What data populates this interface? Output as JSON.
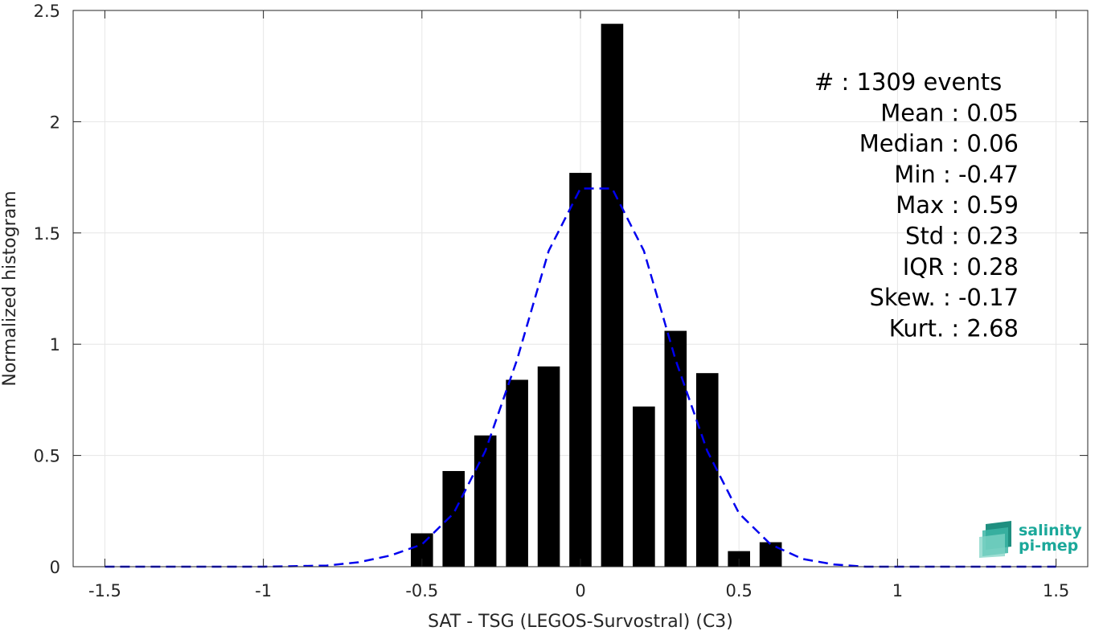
{
  "chart_data": {
    "type": "bar",
    "xlabel": "SAT - TSG (LEGOS-Survostral) (C3)",
    "ylabel": "Normalized histogram",
    "xlim": [
      -1.6,
      1.6
    ],
    "ylim": [
      0,
      2.5
    ],
    "xticks": [
      -1.5,
      -1,
      -0.5,
      0,
      0.5,
      1,
      1.5
    ],
    "xtick_labels": [
      "-1.5",
      "-1",
      "-0.5",
      "0",
      "0.5",
      "1",
      "1.5"
    ],
    "yticks": [
      0,
      0.5,
      1,
      1.5,
      2,
      2.5
    ],
    "ytick_labels": [
      "0",
      "0.5",
      "1",
      "1.5",
      "2",
      "2.5"
    ],
    "grid": true,
    "bar_color": "#000000",
    "bars": {
      "x": [
        -0.5,
        -0.4,
        -0.3,
        -0.2,
        -0.1,
        0.0,
        0.1,
        0.2,
        0.3,
        0.4,
        0.5,
        0.6
      ],
      "values": [
        0.15,
        0.43,
        0.59,
        0.84,
        0.9,
        1.77,
        2.44,
        0.72,
        1.06,
        0.87,
        0.07,
        0.11
      ]
    },
    "fit_curve": {
      "style": "dashed",
      "color": "#0000ee",
      "x": [
        -1.5,
        -1.0,
        -0.8,
        -0.7,
        -0.6,
        -0.5,
        -0.4,
        -0.3,
        -0.2,
        -0.1,
        0.0,
        0.1,
        0.2,
        0.3,
        0.4,
        0.5,
        0.6,
        0.7,
        0.8,
        0.9,
        1.0,
        1.5
      ],
      "values": [
        0.0,
        0.0,
        0.005,
        0.02,
        0.05,
        0.1,
        0.24,
        0.52,
        0.93,
        1.42,
        1.7,
        1.7,
        1.42,
        0.93,
        0.52,
        0.24,
        0.1,
        0.035,
        0.01,
        0.0,
        0.0,
        0.0
      ]
    },
    "annotations": [
      "#  : 1309 events",
      "Mean : 0.05",
      "Median : 0.06",
      "Min : -0.47",
      "Max : 0.59",
      "Std : 0.23",
      "IQR : 0.28",
      "Skew. : -0.17",
      "Kurt. : 2.68"
    ],
    "annotation_align": [
      "left",
      "right",
      "right",
      "right",
      "right",
      "right",
      "right",
      "right",
      "right"
    ]
  },
  "logo": {
    "line1": "salinity",
    "line2": "pi-mep",
    "color": "#1ba89a"
  }
}
